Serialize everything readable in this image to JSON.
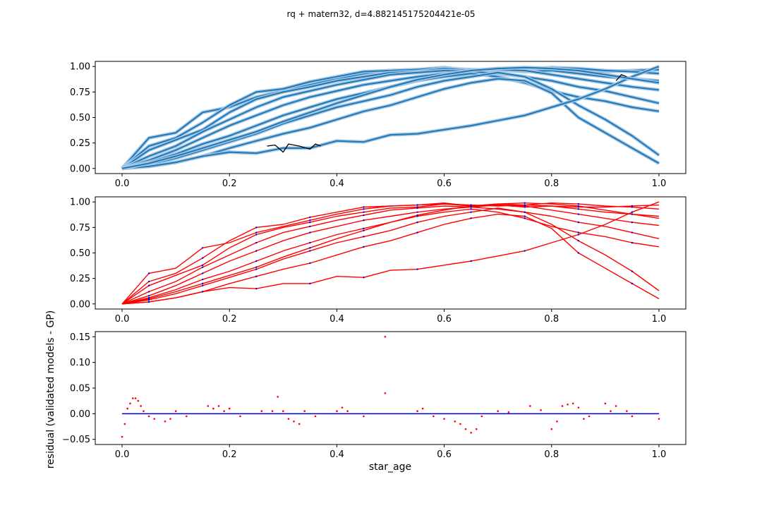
{
  "figure": {
    "suptitle": "rq + matern32, d=4.882145175204421e-05",
    "background": "#ffffff"
  },
  "chart_data": [
    {
      "type": "line",
      "panel": "top",
      "title": "",
      "xlabel": "",
      "ylabel": "",
      "xlim": [
        -0.05,
        1.05
      ],
      "ylim": [
        -0.05,
        1.05
      ],
      "xticks": [
        "0.0",
        "0.2",
        "0.4",
        "0.6",
        "0.8",
        "1.0"
      ],
      "yticks": [
        "0.00",
        "0.25",
        "0.50",
        "0.75",
        "1.00"
      ],
      "grid": false,
      "colors": {
        "gp_mean": "#1f77b4",
        "gp_band": "#a6c8e6",
        "validated": "#000000"
      },
      "series": [
        {
          "x": [
            0.0,
            0.05,
            0.1,
            0.15,
            0.2,
            0.25,
            0.3,
            0.35,
            0.4,
            0.45,
            0.5,
            0.55,
            0.6,
            0.65,
            0.7,
            0.75,
            0.8,
            0.85,
            0.9,
            0.95,
            1.0
          ],
          "y": [
            0.0,
            0.3,
            0.35,
            0.55,
            0.6,
            0.7,
            0.76,
            0.82,
            0.88,
            0.93,
            0.96,
            0.97,
            0.98,
            0.97,
            0.96,
            0.97,
            0.96,
            0.95,
            0.95,
            0.96,
            0.97
          ]
        },
        {
          "x": [
            0.0,
            0.05,
            0.1,
            0.15,
            0.2,
            0.25,
            0.3,
            0.35,
            0.4,
            0.45,
            0.5,
            0.55,
            0.6,
            0.65,
            0.7,
            0.75,
            0.8,
            0.85,
            0.9,
            0.95,
            1.0
          ],
          "y": [
            0.0,
            0.22,
            0.3,
            0.45,
            0.62,
            0.75,
            0.78,
            0.85,
            0.9,
            0.95,
            0.96,
            0.97,
            0.99,
            0.96,
            0.98,
            0.97,
            0.99,
            0.98,
            0.96,
            0.95,
            0.93
          ]
        },
        {
          "x": [
            0.0,
            0.05,
            0.1,
            0.15,
            0.2,
            0.25,
            0.3,
            0.35,
            0.4,
            0.45,
            0.5,
            0.55,
            0.6,
            0.65,
            0.7,
            0.75,
            0.8,
            0.85,
            0.9,
            0.95,
            1.0
          ],
          "y": [
            0.0,
            0.18,
            0.28,
            0.38,
            0.55,
            0.68,
            0.75,
            0.8,
            0.86,
            0.9,
            0.94,
            0.95,
            0.98,
            0.96,
            0.97,
            0.95,
            0.96,
            0.93,
            0.9,
            0.88,
            0.86
          ]
        },
        {
          "x": [
            0.0,
            0.05,
            0.1,
            0.15,
            0.2,
            0.25,
            0.3,
            0.35,
            0.4,
            0.45,
            0.5,
            0.55,
            0.6,
            0.65,
            0.7,
            0.75,
            0.8,
            0.85,
            0.9,
            0.95,
            1.0
          ],
          "y": [
            0.0,
            0.12,
            0.22,
            0.36,
            0.48,
            0.6,
            0.7,
            0.76,
            0.82,
            0.87,
            0.92,
            0.94,
            0.96,
            0.95,
            0.97,
            0.96,
            0.92,
            0.88,
            0.84,
            0.8,
            0.77
          ]
        },
        {
          "x": [
            0.0,
            0.05,
            0.1,
            0.15,
            0.2,
            0.25,
            0.3,
            0.35,
            0.4,
            0.45,
            0.5,
            0.55,
            0.6,
            0.65,
            0.7,
            0.75,
            0.8,
            0.85,
            0.9,
            0.95,
            1.0
          ],
          "y": [
            0.0,
            0.08,
            0.18,
            0.3,
            0.42,
            0.52,
            0.62,
            0.7,
            0.76,
            0.82,
            0.86,
            0.9,
            0.93,
            0.95,
            0.93,
            0.9,
            0.86,
            0.8,
            0.76,
            0.7,
            0.64
          ]
        },
        {
          "x": [
            0.0,
            0.05,
            0.1,
            0.15,
            0.2,
            0.25,
            0.3,
            0.35,
            0.4,
            0.45,
            0.5,
            0.55,
            0.6,
            0.65,
            0.7,
            0.75,
            0.8,
            0.85,
            0.9,
            0.95,
            1.0
          ],
          "y": [
            0.0,
            0.06,
            0.14,
            0.24,
            0.32,
            0.42,
            0.52,
            0.6,
            0.68,
            0.74,
            0.8,
            0.86,
            0.9,
            0.93,
            0.9,
            0.84,
            0.76,
            0.7,
            0.66,
            0.6,
            0.56
          ]
        },
        {
          "x": [
            0.0,
            0.05,
            0.1,
            0.15,
            0.2,
            0.25,
            0.3,
            0.35,
            0.4,
            0.45,
            0.5,
            0.55,
            0.6,
            0.65,
            0.7,
            0.75,
            0.8,
            0.85,
            0.9,
            0.95,
            1.0
          ],
          "y": [
            0.0,
            0.04,
            0.1,
            0.18,
            0.26,
            0.34,
            0.44,
            0.52,
            0.6,
            0.66,
            0.72,
            0.8,
            0.86,
            0.9,
            0.94,
            0.9,
            0.78,
            0.62,
            0.48,
            0.32,
            0.13
          ]
        },
        {
          "x": [
            0.0,
            0.05,
            0.1,
            0.15,
            0.2,
            0.25,
            0.3,
            0.35,
            0.4,
            0.45,
            0.5,
            0.55,
            0.6,
            0.65,
            0.7,
            0.75,
            0.8,
            0.85,
            0.9,
            0.95,
            1.0
          ],
          "y": [
            0.0,
            0.02,
            0.06,
            0.12,
            0.2,
            0.27,
            0.34,
            0.4,
            0.48,
            0.56,
            0.62,
            0.7,
            0.78,
            0.84,
            0.88,
            0.86,
            0.74,
            0.5,
            0.35,
            0.2,
            0.05
          ]
        },
        {
          "x": [
            0.0,
            0.05,
            0.1,
            0.15,
            0.2,
            0.25,
            0.3,
            0.35,
            0.4,
            0.45,
            0.5,
            0.55,
            0.6,
            0.65,
            0.7,
            0.75,
            0.8,
            0.85,
            0.9,
            0.95,
            1.0
          ],
          "y": [
            0.0,
            0.02,
            0.06,
            0.12,
            0.16,
            0.15,
            0.2,
            0.2,
            0.27,
            0.26,
            0.33,
            0.34,
            0.38,
            0.42,
            0.47,
            0.52,
            0.6,
            0.68,
            0.78,
            0.9,
            1.0
          ]
        },
        {
          "x": [
            0.0,
            0.05,
            0.1,
            0.15,
            0.2,
            0.25,
            0.3,
            0.35,
            0.4,
            0.45,
            0.5,
            0.55,
            0.6,
            0.65,
            0.7,
            0.75,
            0.8,
            0.85,
            0.9,
            0.95,
            1.0
          ],
          "y": [
            0.0,
            0.05,
            0.12,
            0.2,
            0.28,
            0.36,
            0.46,
            0.55,
            0.64,
            0.72,
            0.8,
            0.87,
            0.92,
            0.96,
            0.98,
            0.99,
            0.98,
            0.96,
            0.92,
            0.88,
            0.84
          ]
        }
      ],
      "validated_points": {
        "x": [
          0.27,
          0.285,
          0.3,
          0.31,
          0.33,
          0.35,
          0.36,
          0.37,
          0.92,
          0.93,
          0.94
        ],
        "y": [
          0.22,
          0.23,
          0.16,
          0.24,
          0.22,
          0.19,
          0.24,
          0.22,
          0.86,
          0.92,
          0.9
        ]
      }
    },
    {
      "type": "line",
      "panel": "middle",
      "title": "",
      "xlabel": "",
      "ylabel": "",
      "xlim": [
        -0.05,
        1.05
      ],
      "ylim": [
        -0.05,
        1.05
      ],
      "xticks": [
        "0.0",
        "0.2",
        "0.4",
        "0.6",
        "0.8",
        "1.0"
      ],
      "yticks": [
        "0.00",
        "0.25",
        "0.50",
        "0.75",
        "1.00"
      ],
      "grid": false,
      "colors": {
        "line": "#ff0000",
        "points": "#0000cc"
      },
      "note": "same series as top panel drawn in red with blue validated points",
      "series_ref": "top"
    },
    {
      "type": "scatter",
      "panel": "bottom",
      "title": "",
      "xlabel": "star_age",
      "ylabel": "residual (validated models - GP)",
      "xlim": [
        -0.05,
        1.05
      ],
      "ylim": [
        -0.06,
        0.16
      ],
      "xticks": [
        "0.0",
        "0.2",
        "0.4",
        "0.6",
        "0.8",
        "1.0"
      ],
      "yticks": [
        "−0.05",
        "0.00",
        "0.05",
        "0.10",
        "0.15"
      ],
      "grid": false,
      "colors": {
        "red": "#ff0000",
        "blue": "#0000cc"
      },
      "series": [
        {
          "x": [
            0.0,
            0.005,
            0.01,
            0.015,
            0.02,
            0.025,
            0.03,
            0.035,
            0.04,
            0.05,
            0.06,
            0.08,
            0.09,
            0.1,
            0.12,
            0.16,
            0.17,
            0.18,
            0.19,
            0.2,
            0.22,
            0.26,
            0.28,
            0.29,
            0.3,
            0.31,
            0.32,
            0.33,
            0.34,
            0.36,
            0.4,
            0.41,
            0.42,
            0.45,
            0.49,
            0.49,
            0.55,
            0.56,
            0.58,
            0.6,
            0.62,
            0.63,
            0.64,
            0.65,
            0.66,
            0.67,
            0.7,
            0.72,
            0.76,
            0.78,
            0.8,
            0.81,
            0.82,
            0.83,
            0.84,
            0.85,
            0.86,
            0.87,
            0.9,
            0.91,
            0.92,
            0.94,
            0.95,
            1.0
          ],
          "y": [
            -0.045,
            -0.02,
            0.01,
            0.02,
            0.03,
            0.03,
            0.025,
            0.015,
            0.005,
            -0.005,
            -0.01,
            -0.015,
            -0.01,
            0.005,
            -0.005,
            0.015,
            0.01,
            0.015,
            0.005,
            0.01,
            -0.005,
            0.005,
            0.005,
            0.033,
            0.005,
            -0.01,
            -0.015,
            -0.02,
            0.005,
            -0.005,
            0.005,
            0.012,
            0.005,
            -0.005,
            0.15,
            0.04,
            0.005,
            0.01,
            -0.005,
            -0.01,
            -0.015,
            -0.02,
            -0.03,
            -0.037,
            -0.03,
            -0.005,
            0.005,
            0.003,
            0.015,
            0.007,
            -0.03,
            -0.015,
            0.015,
            0.018,
            0.02,
            0.012,
            -0.01,
            -0.005,
            0.02,
            0.005,
            0.015,
            0.005,
            -0.005,
            -0.01
          ]
        },
        {
          "x": [
            0.0,
            0.2,
            0.4,
            0.6,
            0.8,
            1.0
          ],
          "y": [
            0.0,
            0.0,
            0.0,
            0.0,
            0.0,
            0.0
          ]
        }
      ]
    }
  ]
}
